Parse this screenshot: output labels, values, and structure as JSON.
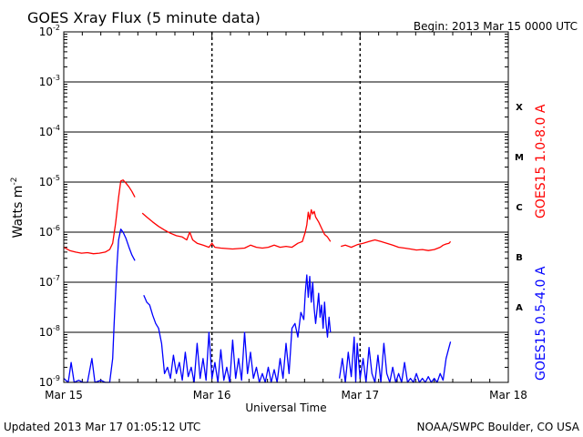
{
  "chart_data": {
    "type": "line",
    "title": "GOES Xray Flux (5 minute data)",
    "begin_label": "Begin:  2013 Mar 15 0000 UTC",
    "xlabel": "Universal Time",
    "ylabel": "Watts m",
    "ylabel_superscript": "-2",
    "y_scale": "log",
    "ylim": [
      1e-09,
      0.01
    ],
    "xlim_days": [
      0,
      3
    ],
    "x_tick_labels": [
      "Mar 15",
      "Mar 16",
      "Mar 17",
      "Mar 18"
    ],
    "y_ticks": [
      {
        "base": "10",
        "exp": "-9",
        "value": 1e-09
      },
      {
        "base": "10",
        "exp": "-8",
        "value": 1e-08
      },
      {
        "base": "10",
        "exp": "-7",
        "value": 1e-07
      },
      {
        "base": "10",
        "exp": "-6",
        "value": 1e-06
      },
      {
        "base": "10",
        "exp": "-5",
        "value": 1e-05
      },
      {
        "base": "10",
        "exp": "-4",
        "value": 0.0001
      },
      {
        "base": "10",
        "exp": "-3",
        "value": 0.001
      },
      {
        "base": "10",
        "exp": "-2",
        "value": 0.01
      }
    ],
    "flare_classes": [
      {
        "label": "A",
        "value": 3.2e-08
      },
      {
        "label": "B",
        "value": 3.2e-07
      },
      {
        "label": "C",
        "value": 3.2e-06
      },
      {
        "label": "M",
        "value": 3.2e-05
      },
      {
        "label": "X",
        "value": 0.00032
      }
    ],
    "series": [
      {
        "name": "GOES15 1.0-8.0 A",
        "color": "#ff0000",
        "segments": [
          [
            [
              0.0,
              5e-07
            ],
            [
              0.04,
              4.3e-07
            ],
            [
              0.08,
              4e-07
            ],
            [
              0.12,
              3.8e-07
            ],
            [
              0.16,
              3.9e-07
            ],
            [
              0.2,
              3.7e-07
            ],
            [
              0.24,
              3.8e-07
            ],
            [
              0.28,
              4e-07
            ],
            [
              0.31,
              4.5e-07
            ],
            [
              0.33,
              6e-07
            ],
            [
              0.35,
              1.5e-06
            ],
            [
              0.37,
              5e-06
            ],
            [
              0.385,
              1.05e-05
            ],
            [
              0.4,
              1.1e-05
            ],
            [
              0.42,
              9.5e-06
            ],
            [
              0.44,
              8e-06
            ],
            [
              0.46,
              6.5e-06
            ],
            [
              0.48,
              5e-06
            ]
          ],
          [
            [
              0.53,
              2.4e-06
            ],
            [
              0.56,
              2e-06
            ],
            [
              0.6,
              1.6e-06
            ],
            [
              0.64,
              1.3e-06
            ],
            [
              0.68,
              1.1e-06
            ],
            [
              0.72,
              9.5e-07
            ],
            [
              0.76,
              8.5e-07
            ],
            [
              0.8,
              8e-07
            ],
            [
              0.83,
              7e-07
            ],
            [
              0.85,
              1e-06
            ],
            [
              0.87,
              7e-07
            ],
            [
              0.9,
              6e-07
            ],
            [
              0.94,
              5.5e-07
            ],
            [
              0.98,
              5e-07
            ],
            [
              1.0,
              6e-07
            ],
            [
              1.02,
              5e-07
            ],
            [
              1.06,
              4.8e-07
            ],
            [
              1.1,
              4.7e-07
            ],
            [
              1.14,
              4.6e-07
            ],
            [
              1.18,
              4.7e-07
            ],
            [
              1.22,
              4.8e-07
            ],
            [
              1.26,
              5.5e-07
            ],
            [
              1.3,
              5e-07
            ],
            [
              1.34,
              4.8e-07
            ],
            [
              1.38,
              5e-07
            ],
            [
              1.42,
              5.5e-07
            ],
            [
              1.46,
              5e-07
            ],
            [
              1.5,
              5.2e-07
            ],
            [
              1.54,
              5e-07
            ],
            [
              1.58,
              6e-07
            ],
            [
              1.61,
              6.5e-07
            ],
            [
              1.63,
              1e-06
            ],
            [
              1.64,
              1.4e-06
            ],
            [
              1.65,
              2.5e-06
            ],
            [
              1.66,
              1.8e-06
            ],
            [
              1.67,
              2.8e-06
            ],
            [
              1.68,
              2.3e-06
            ],
            [
              1.69,
              2.6e-06
            ],
            [
              1.7,
              2e-06
            ],
            [
              1.72,
              1.6e-06
            ],
            [
              1.74,
              1.2e-06
            ],
            [
              1.76,
              9e-07
            ],
            [
              1.78,
              8e-07
            ],
            [
              1.8,
              6.5e-07
            ]
          ],
          [
            [
              1.87,
              5.2e-07
            ],
            [
              1.9,
              5.5e-07
            ],
            [
              1.94,
              5e-07
            ],
            [
              1.98,
              5.6e-07
            ],
            [
              2.02,
              6e-07
            ],
            [
              2.06,
              6.5e-07
            ],
            [
              2.1,
              7e-07
            ],
            [
              2.14,
              6.5e-07
            ],
            [
              2.18,
              6e-07
            ],
            [
              2.22,
              5.5e-07
            ],
            [
              2.26,
              5e-07
            ],
            [
              2.3,
              4.8e-07
            ],
            [
              2.34,
              4.6e-07
            ],
            [
              2.38,
              4.4e-07
            ],
            [
              2.42,
              4.5e-07
            ],
            [
              2.46,
              4.3e-07
            ],
            [
              2.5,
              4.5e-07
            ],
            [
              2.54,
              5e-07
            ],
            [
              2.56,
              5.5e-07
            ],
            [
              2.58,
              5.8e-07
            ],
            [
              2.6,
              6e-07
            ],
            [
              2.61,
              6.5e-07
            ]
          ]
        ]
      },
      {
        "name": "GOES15 0.5-4.0 A",
        "color": "#0000ff",
        "segments": [
          [
            [
              0.0,
              1.2e-09
            ],
            [
              0.03,
              1e-09
            ],
            [
              0.05,
              2.5e-09
            ],
            [
              0.07,
              1e-09
            ],
            [
              0.1,
              1.1e-09
            ],
            [
              0.13,
              1e-09
            ],
            [
              0.16,
              1e-09
            ],
            [
              0.19,
              3e-09
            ],
            [
              0.21,
              1e-09
            ],
            [
              0.25,
              1.1e-09
            ],
            [
              0.28,
              1e-09
            ],
            [
              0.31,
              1e-09
            ],
            [
              0.33,
              3e-09
            ],
            [
              0.34,
              1.5e-08
            ],
            [
              0.35,
              6e-08
            ],
            [
              0.36,
              2.5e-07
            ],
            [
              0.37,
              7e-07
            ],
            [
              0.385,
              1.15e-06
            ],
            [
              0.4,
              1e-06
            ],
            [
              0.42,
              7.5e-07
            ],
            [
              0.44,
              5e-07
            ],
            [
              0.46,
              3.5e-07
            ],
            [
              0.48,
              2.7e-07
            ]
          ],
          [
            [
              0.54,
              5.5e-08
            ],
            [
              0.56,
              4e-08
            ],
            [
              0.58,
              3.5e-08
            ],
            [
              0.6,
              2.2e-08
            ],
            [
              0.62,
              1.5e-08
            ],
            [
              0.64,
              1.2e-08
            ],
            [
              0.66,
              6e-09
            ],
            [
              0.67,
              3e-09
            ],
            [
              0.68,
              1.5e-09
            ],
            [
              0.7,
              2e-09
            ],
            [
              0.72,
              1.2e-09
            ],
            [
              0.74,
              3.5e-09
            ],
            [
              0.76,
              1.5e-09
            ],
            [
              0.78,
              2.5e-09
            ],
            [
              0.8,
              1.1e-09
            ],
            [
              0.82,
              4e-09
            ],
            [
              0.84,
              1.3e-09
            ],
            [
              0.86,
              2e-09
            ],
            [
              0.88,
              1e-09
            ],
            [
              0.9,
              6e-09
            ],
            [
              0.92,
              1.2e-09
            ],
            [
              0.94,
              3e-09
            ],
            [
              0.96,
              1.1e-09
            ],
            [
              0.98,
              1e-08
            ],
            [
              1.0,
              1.2e-09
            ],
            [
              1.02,
              2.5e-09
            ],
            [
              1.04,
              1e-09
            ],
            [
              1.06,
              4.5e-09
            ],
            [
              1.08,
              1.1e-09
            ],
            [
              1.1,
              2e-09
            ],
            [
              1.12,
              1e-09
            ],
            [
              1.14,
              7e-09
            ],
            [
              1.16,
              1.2e-09
            ],
            [
              1.18,
              3e-09
            ],
            [
              1.2,
              1.1e-09
            ],
            [
              1.22,
              1e-08
            ],
            [
              1.24,
              1.5e-09
            ],
            [
              1.26,
              4e-09
            ],
            [
              1.28,
              1.2e-09
            ],
            [
              1.3,
              2e-09
            ],
            [
              1.32,
              1e-09
            ],
            [
              1.34,
              1.5e-09
            ],
            [
              1.36,
              1e-09
            ],
            [
              1.38,
              2e-09
            ],
            [
              1.4,
              1e-09
            ],
            [
              1.42,
              1.8e-09
            ],
            [
              1.44,
              1e-09
            ],
            [
              1.46,
              3e-09
            ],
            [
              1.48,
              1.2e-09
            ],
            [
              1.5,
              6e-09
            ],
            [
              1.52,
              1.5e-09
            ],
            [
              1.54,
              1.2e-08
            ],
            [
              1.56,
              1.5e-08
            ],
            [
              1.58,
              8e-09
            ],
            [
              1.6,
              2.5e-08
            ],
            [
              1.62,
              1.8e-08
            ],
            [
              1.63,
              6e-08
            ],
            [
              1.64,
              1.4e-07
            ],
            [
              1.65,
              5e-08
            ],
            [
              1.66,
              1.3e-07
            ],
            [
              1.67,
              4e-08
            ],
            [
              1.68,
              1e-07
            ],
            [
              1.69,
              3e-08
            ],
            [
              1.7,
              1.5e-08
            ],
            [
              1.71,
              3e-08
            ],
            [
              1.72,
              6e-08
            ],
            [
              1.73,
              2e-08
            ],
            [
              1.74,
              3.5e-08
            ],
            [
              1.75,
              1.2e-08
            ],
            [
              1.76,
              4e-08
            ],
            [
              1.77,
              1.5e-08
            ],
            [
              1.78,
              8e-09
            ],
            [
              1.79,
              2e-08
            ],
            [
              1.8,
              1e-08
            ]
          ],
          [
            [
              1.86,
              1.2e-09
            ],
            [
              1.88,
              3e-09
            ],
            [
              1.9,
              1e-09
            ],
            [
              1.92,
              4e-09
            ],
            [
              1.94,
              1.3e-09
            ],
            [
              1.96,
              8e-09
            ],
            [
              1.97,
              1e-09
            ],
            [
              1.98,
              6e-09
            ],
            [
              2.0,
              1.2e-09
            ],
            [
              2.02,
              3e-09
            ],
            [
              2.04,
              1e-09
            ],
            [
              2.06,
              5e-09
            ],
            [
              2.08,
              1.5e-09
            ],
            [
              2.1,
              1e-09
            ],
            [
              2.12,
              3.5e-09
            ],
            [
              2.14,
              1e-09
            ],
            [
              2.16,
              6e-09
            ],
            [
              2.18,
              1.5e-09
            ],
            [
              2.2,
              1e-09
            ],
            [
              2.22,
              2e-09
            ],
            [
              2.24,
              1e-09
            ],
            [
              2.26,
              1.5e-09
            ],
            [
              2.28,
              1e-09
            ],
            [
              2.3,
              2.5e-09
            ],
            [
              2.32,
              1e-09
            ],
            [
              2.34,
              1.2e-09
            ],
            [
              2.36,
              1e-09
            ],
            [
              2.38,
              1.5e-09
            ],
            [
              2.4,
              1e-09
            ],
            [
              2.42,
              1.2e-09
            ],
            [
              2.44,
              1e-09
            ],
            [
              2.46,
              1.3e-09
            ],
            [
              2.48,
              1e-09
            ],
            [
              2.5,
              1.2e-09
            ],
            [
              2.52,
              1e-09
            ],
            [
              2.54,
              1.5e-09
            ],
            [
              2.56,
              1.1e-09
            ],
            [
              2.58,
              3e-09
            ],
            [
              2.6,
              5e-09
            ],
            [
              2.61,
              6.5e-09
            ]
          ]
        ]
      }
    ]
  },
  "footer": {
    "updated": "Updated 2013 Mar 17 01:05:12 UTC",
    "credit": "NOAA/SWPC Boulder, CO USA"
  }
}
